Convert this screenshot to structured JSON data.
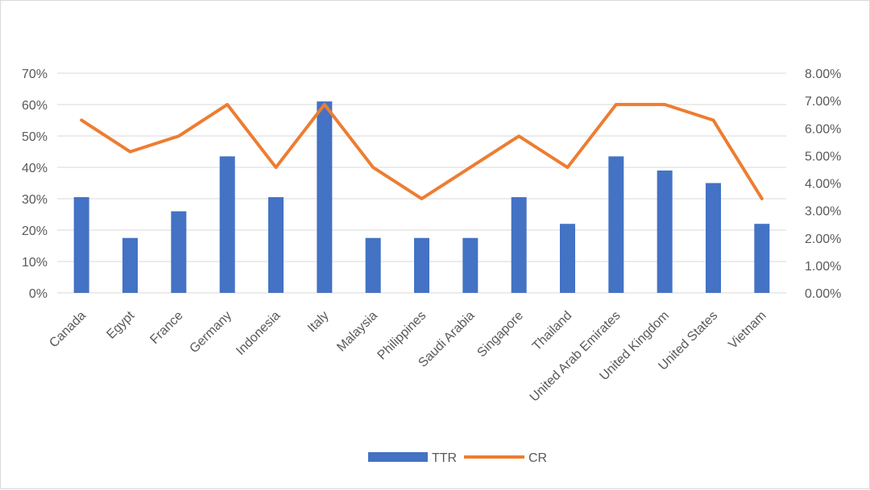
{
  "chart_data": {
    "type": "bar",
    "title": "",
    "categories": [
      "Canada",
      "Egypt",
      "France",
      "Germany",
      "Indonesia",
      "Italy",
      "Malaysia",
      "Philippines",
      "Saudi  Arabia",
      "Singapore",
      "Thailand",
      "United  Arab  Emirates",
      "United Kingdom",
      "United  States",
      "Vietnam"
    ],
    "series": [
      {
        "name": "TTR",
        "type": "bar",
        "axis": "left",
        "color": "#4472c4",
        "values": [
          30.5,
          17.5,
          26,
          43.5,
          30.5,
          61,
          17.5,
          17.5,
          17.5,
          30.5,
          22,
          43.5,
          39,
          35,
          22
        ]
      },
      {
        "name": "CR",
        "type": "line",
        "axis": "right",
        "color": "#ed7d31",
        "values": [
          6.29,
          5.14,
          5.71,
          6.86,
          4.57,
          6.86,
          4.57,
          3.43,
          4.57,
          5.71,
          4.57,
          6.86,
          6.86,
          6.29,
          3.43
        ]
      }
    ],
    "y_left": {
      "range": [
        0,
        70
      ],
      "ticks": [
        0,
        10,
        20,
        30,
        40,
        50,
        60,
        70
      ],
      "tick_labels": [
        "0%",
        "10%",
        "20%",
        "30%",
        "40%",
        "50%",
        "60%",
        "70%"
      ]
    },
    "y_right": {
      "range": [
        0,
        8
      ],
      "ticks": [
        0,
        1,
        2,
        3,
        4,
        5,
        6,
        7,
        8
      ],
      "tick_labels": [
        "0.00%",
        "1.00%",
        "2.00%",
        "3.00%",
        "4.00%",
        "5.00%",
        "6.00%",
        "7.00%",
        "8.00%"
      ]
    },
    "grid": true,
    "legend": {
      "position": "bottom",
      "entries": [
        "TTR",
        "CR"
      ]
    },
    "xlabel": "",
    "ylabel": ""
  }
}
